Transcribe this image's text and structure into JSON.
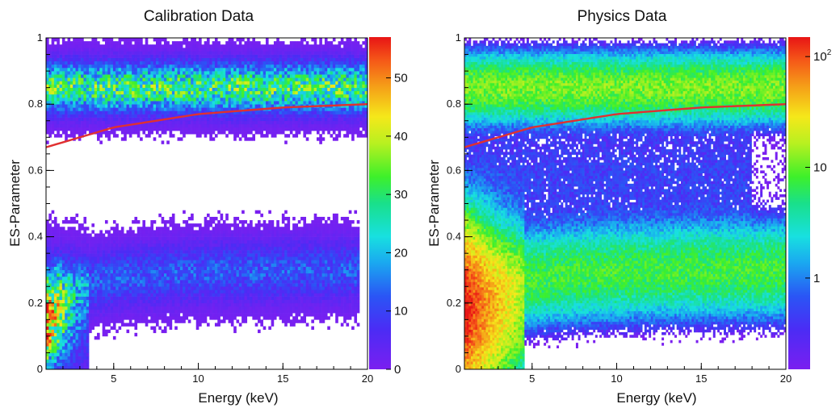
{
  "chart_data": [
    {
      "type": "heatmap",
      "title": "Calibration Data",
      "xlabel": "Energy (keV)",
      "ylabel": "ES-Parameter",
      "xlim": [
        1,
        20
      ],
      "ylim": [
        0,
        1
      ],
      "x_ticks": [
        "5",
        "10",
        "15",
        "20"
      ],
      "y_ticks": [
        "0",
        "0.2",
        "0.4",
        "0.6",
        "0.8",
        "1"
      ],
      "colorbar": {
        "scale": "linear",
        "range": [
          0,
          57
        ],
        "ticks": [
          "0",
          "10",
          "20",
          "30",
          "40",
          "50"
        ]
      },
      "clusters": [
        {
          "region": "upper band",
          "energy_range_keV": [
            1,
            20
          ],
          "es_center": 0.85,
          "es_width": 0.05,
          "peak_counts": 30
        },
        {
          "region": "lower band",
          "energy_range_keV": [
            2,
            19
          ],
          "es_center": 0.3,
          "es_width": 0.06,
          "peak_counts": 12
        },
        {
          "region": "low-energy tail",
          "energy_range_keV": [
            1,
            3
          ],
          "es_center": 0.15,
          "es_width": 0.1,
          "peak_counts": 55
        }
      ],
      "cut_line": {
        "color": "#e03030",
        "x": [
          1,
          5,
          10,
          15,
          20
        ],
        "y": [
          0.67,
          0.73,
          0.77,
          0.79,
          0.8
        ]
      }
    },
    {
      "type": "heatmap",
      "title": "Physics Data",
      "xlabel": "Energy (keV)",
      "ylabel": "ES-Parameter",
      "xlim": [
        1,
        20
      ],
      "ylim": [
        0,
        1
      ],
      "x_ticks": [
        "5",
        "10",
        "15",
        "20"
      ],
      "y_ticks": [
        "0",
        "0.2",
        "0.4",
        "0.6",
        "0.8",
        "1"
      ],
      "colorbar": {
        "scale": "log",
        "range": [
          0.15,
          150
        ],
        "ticks": [
          "1",
          "10",
          "10^2"
        ]
      },
      "clusters": [
        {
          "region": "upper band",
          "energy_range_keV": [
            1,
            20
          ],
          "es_center": 0.85,
          "es_width": 0.05,
          "peak_counts": 12
        },
        {
          "region": "lower band",
          "energy_range_keV": [
            1,
            20
          ],
          "es_center": 0.3,
          "es_width": 0.07,
          "peak_counts": 8
        },
        {
          "region": "low-energy tail",
          "energy_range_keV": [
            1,
            4
          ],
          "es_center": 0.18,
          "es_width": 0.12,
          "peak_counts": 150
        }
      ],
      "cut_line": {
        "color": "#e03030",
        "x": [
          1,
          5,
          10,
          15,
          20
        ],
        "y": [
          0.67,
          0.73,
          0.77,
          0.79,
          0.8
        ]
      }
    }
  ]
}
